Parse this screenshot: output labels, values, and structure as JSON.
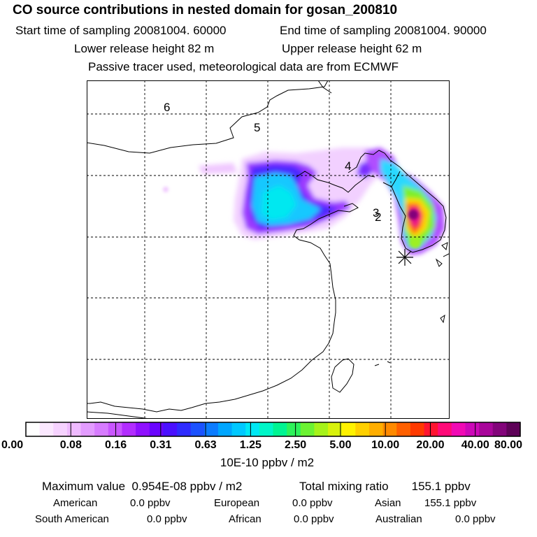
{
  "header": {
    "title": "CO  source contributions in nested domain for gosan_200810",
    "start_time": "Start time of sampling 20081004. 60000",
    "end_time": "End time of sampling 20081004. 90000",
    "lower_release": "Lower release height   82 m",
    "upper_release": "Upper release height   62 m",
    "tracer_note": "Passive tracer used, meteorological data are from ECMWF"
  },
  "map": {
    "day_labels": [
      "6",
      "5",
      "4",
      "3",
      "2"
    ],
    "receptor": "gosan"
  },
  "colorbar": {
    "ticks": [
      "0.00",
      "0.08",
      "0.16",
      "0.31",
      "0.63",
      "1.25",
      "2.50",
      "5.00",
      "10.00",
      "20.00",
      "40.00",
      "80.00"
    ],
    "units": "10E-10 ppbv / m2",
    "colors": [
      "#ffffff",
      "#fbe8ff",
      "#f6d2ff",
      "#efbaff",
      "#e39cff",
      "#d77cff",
      "#c956ff",
      "#b22dff",
      "#8f10ff",
      "#6a05ff",
      "#4a10ff",
      "#2f2cff",
      "#1c52ff",
      "#0c7cff",
      "#00a6ff",
      "#00c8ff",
      "#00e8f4",
      "#00f6c8",
      "#00f492",
      "#2df25a",
      "#6cf232",
      "#a6f21a",
      "#d8f20c",
      "#fff200",
      "#ffd000",
      "#ffae00",
      "#ff8a00",
      "#ff6000",
      "#ff3a00",
      "#ff1430",
      "#ff0a78",
      "#f00ab4",
      "#cc08b8",
      "#a8069a",
      "#82047a",
      "#5e0258"
    ]
  },
  "summary": {
    "max_label": "Maximum value",
    "max_value": "0.954E-08 ppbv / m2",
    "total_label": "Total mixing ratio",
    "total_value": "155.1 ppbv"
  },
  "sources": {
    "american_label": "American",
    "american_value": "0.0 ppbv",
    "european_label": "European",
    "european_value": "0.0 ppbv",
    "asian_label": "Asian",
    "asian_value": "155.1 ppbv",
    "south_american_label": "South American",
    "south_american_value": "0.0 ppbv",
    "african_label": "African",
    "african_value": "0.0 ppbv",
    "australian_label": "Australian",
    "australian_value": "0.0 ppbv"
  }
}
